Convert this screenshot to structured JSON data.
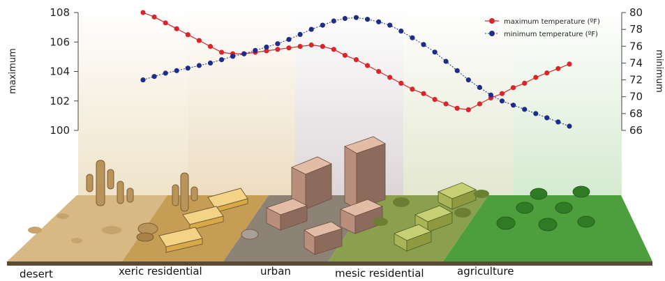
{
  "chart_data": {
    "type": "line",
    "x": [
      0,
      1,
      2,
      3,
      4,
      5,
      6,
      7,
      8,
      9,
      10,
      11,
      12,
      13,
      14,
      15,
      16,
      17,
      18,
      19,
      20,
      21,
      22,
      23,
      24,
      25,
      26,
      27,
      28,
      29,
      30,
      31,
      32,
      33,
      34,
      35,
      36,
      37,
      38
    ],
    "xlabel": "",
    "left_axis": {
      "label": "maximum",
      "ylim": [
        100,
        108
      ],
      "ticks": [
        100,
        102,
        104,
        106,
        108
      ]
    },
    "right_axis": {
      "label": "minimum",
      "ylim": [
        66,
        80
      ],
      "ticks": [
        66,
        68,
        70,
        72,
        74,
        76,
        78,
        80
      ]
    },
    "series": [
      {
        "name": "maximum temperature (ºF)",
        "axis": "left",
        "color": "#d8262a",
        "values": [
          108.0,
          107.7,
          107.3,
          106.9,
          106.5,
          106.1,
          105.7,
          105.3,
          105.2,
          105.2,
          105.3,
          105.4,
          105.5,
          105.6,
          105.7,
          105.8,
          105.7,
          105.5,
          105.1,
          104.8,
          104.4,
          104.0,
          103.6,
          103.2,
          102.8,
          102.5,
          102.1,
          101.8,
          101.5,
          101.4,
          101.8,
          102.2,
          102.5,
          102.9,
          103.2,
          103.6,
          103.9,
          104.2,
          104.5
        ]
      },
      {
        "name": "minimum temperature (ºF)",
        "axis": "right",
        "color": "#1f2d8a",
        "values": [
          72.0,
          72.4,
          72.8,
          73.1,
          73.4,
          73.7,
          74.0,
          74.4,
          74.8,
          75.1,
          75.5,
          75.9,
          76.3,
          76.8,
          77.4,
          78.0,
          78.5,
          79.0,
          79.3,
          79.4,
          79.2,
          78.9,
          78.5,
          77.8,
          77.0,
          76.2,
          75.3,
          74.2,
          73.1,
          72.0,
          71.1,
          70.2,
          69.5,
          69.0,
          68.5,
          68.0,
          67.5,
          67.0,
          66.5
        ]
      }
    ],
    "legend": "top-right",
    "grid": false
  },
  "zones": [
    "desert",
    "xeric residential",
    "urban",
    "mesic residential",
    "agriculture"
  ],
  "colors": {
    "desert": "#d9b983",
    "xeric": "#c59d55",
    "urban": "#8c8376",
    "mesic": "#8aa04e",
    "agriculture": "#4d9e3c"
  }
}
